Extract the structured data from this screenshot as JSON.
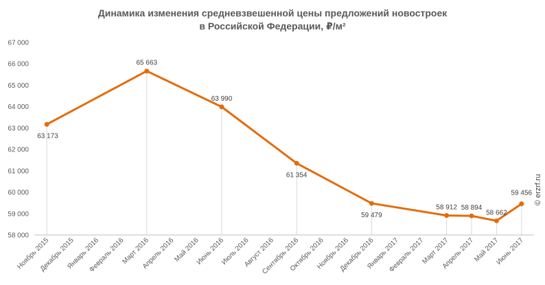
{
  "chart_data": {
    "type": "line",
    "title_lines": [
      "Динамика изменения средневзвешенной цены предложений новостроек",
      "в Российской Федерации, ₽/м²"
    ],
    "xlabel": "",
    "ylabel": "",
    "ylim": [
      58000,
      67000
    ],
    "yticks": [
      "58 000",
      "59 000",
      "60 000",
      "61 000",
      "62 000",
      "63 000",
      "64 000",
      "65 000",
      "66 000",
      "67 000"
    ],
    "categories": [
      "Ноябрь 2015",
      "Декабрь 2015",
      "Январь 2016",
      "Февраль 2016",
      "Март 2016",
      "Апрель 2016",
      "Май 2016",
      "Июнь 2016",
      "Июль 2016",
      "Август 2016",
      "Сентябрь 2016",
      "Октябрь 2016",
      "Ноябрь 2016",
      "Декабрь 2016",
      "Январь 2017",
      "Февраль 2017",
      "Март 2017",
      "Апрель 2017",
      "Май 2017",
      "Июнь 2017"
    ],
    "grid": "vertical drop lines at data points",
    "legend": "none",
    "series": [
      {
        "color": "#e46c0a",
        "points": [
          {
            "index": 0,
            "value": 63173,
            "label": "63 173"
          },
          {
            "index": 4,
            "value": 65663,
            "label": "65 663"
          },
          {
            "index": 7,
            "value": 63990,
            "label": "63 990"
          },
          {
            "index": 10,
            "value": 61354,
            "label": "61 354"
          },
          {
            "index": 13,
            "value": 59479,
            "label": "59 479"
          },
          {
            "index": 16,
            "value": 58912,
            "label": "58 912"
          },
          {
            "index": 17,
            "value": 58894,
            "label": "58 894"
          },
          {
            "index": 18,
            "value": 58662,
            "label": "58 662"
          },
          {
            "index": 19,
            "value": 59456,
            "label": "59 456"
          }
        ]
      }
    ]
  },
  "watermark": "© erzrf.ru",
  "colors": {
    "axis": "#bfbfbf",
    "text": "#595959",
    "dropline": "#d9d9d9"
  }
}
